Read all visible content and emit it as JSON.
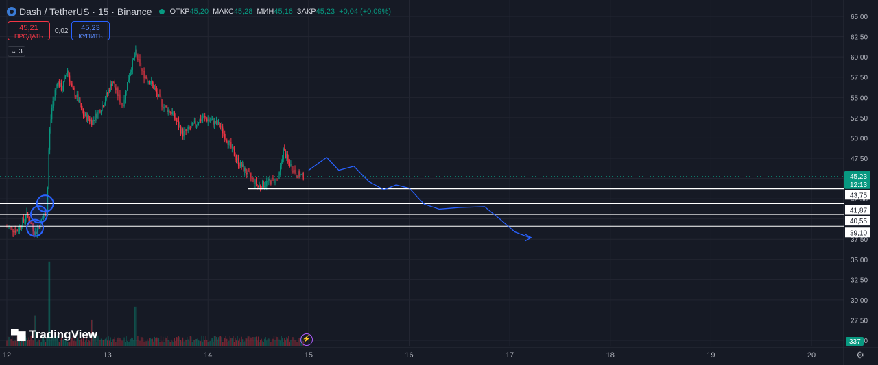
{
  "header": {
    "symbol": "Dash / TetherUS · 15 · Binance",
    "open_label": "ОТКР",
    "open": "45,20",
    "high_label": "МАКС",
    "high": "45,28",
    "low_label": "МИН",
    "low": "45,16",
    "close_label": "ЗАКР",
    "close": "45,23",
    "change": "+0,04 (+0,09%)"
  },
  "trade": {
    "sell_price": "45,21",
    "sell_label": "ПРОДАТЬ",
    "spread": "0,02",
    "buy_price": "45,23",
    "buy_label": "КУПИТЬ"
  },
  "indicators_toggle": "3",
  "brand": "TradingView",
  "colors": {
    "background": "#161a25",
    "up": "#089981",
    "down": "#f23645",
    "projection": "#2962ff",
    "level": "#ffffff"
  },
  "chart_data": {
    "type": "candlestick",
    "x_ticks": [
      "12",
      "13",
      "14",
      "15",
      "16",
      "17",
      "18",
      "19",
      "20"
    ],
    "y_ticks": [
      "65,00",
      "62,50",
      "60,00",
      "57,50",
      "55,00",
      "52,50",
      "50,00",
      "47,50",
      "45,00",
      "42,50",
      "40,00",
      "37,50",
      "35,00",
      "32,50",
      "30,00",
      "27,50",
      "25,00"
    ],
    "ylim": [
      25,
      65
    ],
    "last_price": {
      "value": 45.23,
      "label": "45,23",
      "countdown": "12:13"
    },
    "volume_label": "337",
    "levels": [
      {
        "value": 43.75,
        "label": "43,75",
        "thick": true
      },
      {
        "value": 41.87,
        "label": "41,87",
        "thick": false
      },
      {
        "value": 40.55,
        "label": "40,55",
        "thick": false
      },
      {
        "value": 39.1,
        "label": "39,10",
        "thick": false
      }
    ],
    "price_path": [
      [
        12.0,
        39.0
      ],
      [
        12.1,
        38.5
      ],
      [
        12.2,
        40.5
      ],
      [
        12.28,
        38.2
      ],
      [
        12.35,
        40.0
      ],
      [
        12.4,
        41.0
      ],
      [
        12.42,
        50.0
      ],
      [
        12.45,
        54.0
      ],
      [
        12.5,
        57.0
      ],
      [
        12.55,
        56.0
      ],
      [
        12.6,
        58.5
      ],
      [
        12.65,
        56.0
      ],
      [
        12.7,
        55.0
      ],
      [
        12.75,
        53.0
      ],
      [
        12.85,
        52.0
      ],
      [
        12.95,
        54.0
      ],
      [
        13.05,
        57.0
      ],
      [
        13.15,
        54.0
      ],
      [
        13.22,
        58.0
      ],
      [
        13.28,
        60.5
      ],
      [
        13.35,
        58.0
      ],
      [
        13.45,
        56.5
      ],
      [
        13.55,
        54.0
      ],
      [
        13.65,
        53.0
      ],
      [
        13.75,
        50.5
      ],
      [
        13.85,
        51.5
      ],
      [
        13.95,
        52.5
      ],
      [
        14.05,
        52.0
      ],
      [
        14.12,
        51.5
      ],
      [
        14.2,
        49.5
      ],
      [
        14.3,
        47.0
      ],
      [
        14.4,
        45.5
      ],
      [
        14.5,
        44.0
      ],
      [
        14.6,
        44.5
      ],
      [
        14.7,
        45.0
      ],
      [
        14.75,
        48.5
      ],
      [
        14.8,
        47.0
      ],
      [
        14.88,
        45.5
      ],
      [
        14.95,
        45.23
      ]
    ],
    "volume_spikes": [
      {
        "x": 12.42,
        "value": 0.97
      },
      {
        "x": 12.28,
        "value": 0.35
      },
      {
        "x": 13.28,
        "value": 0.45
      },
      {
        "x": 12.85,
        "value": 0.3
      }
    ],
    "projection": [
      [
        15.0,
        46.0
      ],
      [
        15.18,
        47.6
      ],
      [
        15.3,
        46.0
      ],
      [
        15.45,
        46.5
      ],
      [
        15.6,
        44.6
      ],
      [
        15.75,
        43.6
      ],
      [
        15.87,
        44.2
      ],
      [
        16.0,
        43.8
      ],
      [
        16.15,
        41.8
      ],
      [
        16.3,
        41.2
      ],
      [
        16.5,
        41.4
      ],
      [
        16.75,
        41.5
      ],
      [
        16.9,
        40.0
      ],
      [
        17.05,
        38.4
      ],
      [
        17.2,
        37.7
      ]
    ],
    "markers": [
      {
        "x": 12.38,
        "value": 41.9
      },
      {
        "x": 12.32,
        "value": 40.55
      },
      {
        "x": 12.28,
        "value": 38.9
      }
    ]
  }
}
